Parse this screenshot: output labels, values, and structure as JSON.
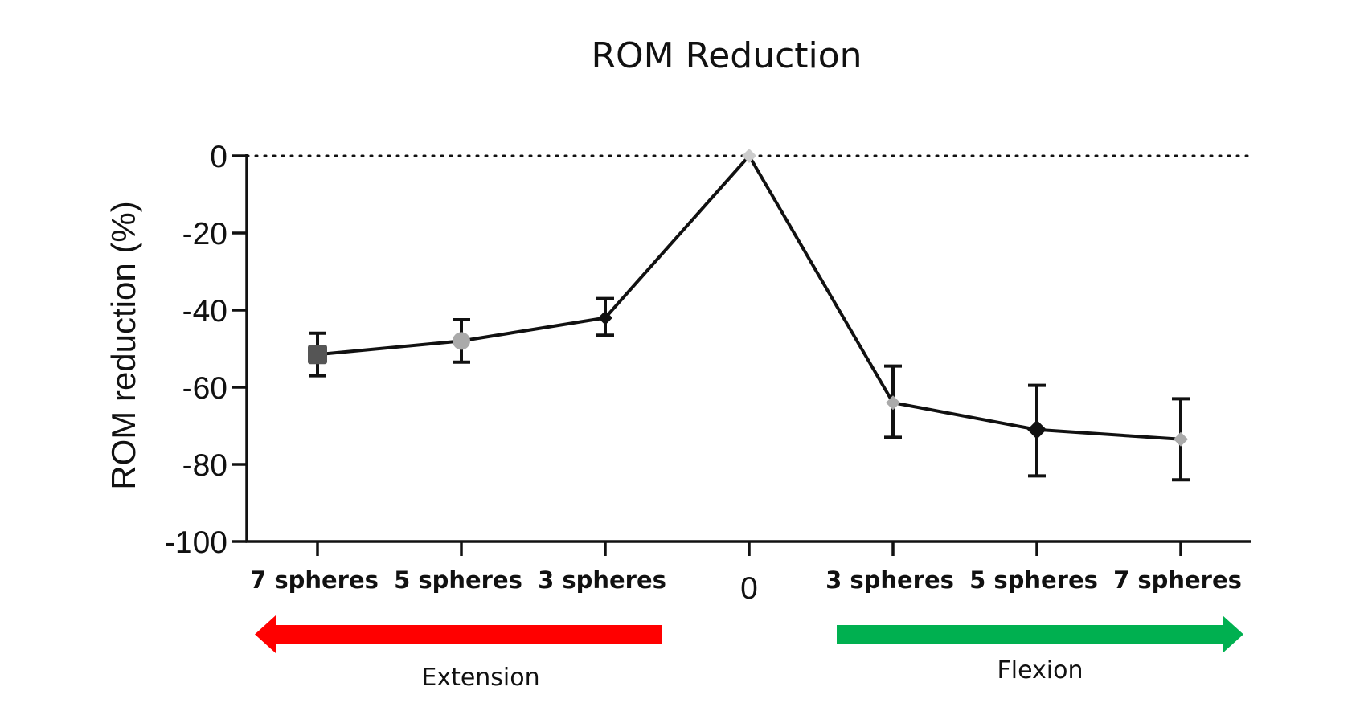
{
  "chart_data": {
    "type": "line",
    "title": "ROM Reduction",
    "ylabel": "ROM reduction (%)",
    "xlabel": "",
    "ylim": [
      -100,
      0
    ],
    "yticks": [
      0,
      -20,
      -40,
      -60,
      -80,
      -100
    ],
    "reference_line": {
      "y": 0,
      "style": "dotted"
    },
    "categories": [
      "7 spheres",
      "5 spheres",
      "3 spheres",
      "0",
      "3 spheres",
      "5 spheres",
      "7 spheres"
    ],
    "values": [
      -51.5,
      -48,
      -42,
      0,
      -64,
      -71,
      -73.5
    ],
    "error_bars": [
      [
        -57,
        -46
      ],
      [
        -53.5,
        -42.5
      ],
      [
        -46.5,
        -37
      ],
      null,
      [
        -73,
        -54.5
      ],
      [
        -83,
        -59.5
      ],
      [
        -84,
        -63
      ]
    ],
    "marker_colors": [
      "#555555",
      "#aaaaaa",
      "#111111",
      "#cccccc",
      "#aaaaaa",
      "#111111",
      "#aaaaaa"
    ],
    "directions": [
      {
        "label": "Extension",
        "color": "#ff0000",
        "pointing": "left",
        "categories": [
          0,
          1,
          2
        ]
      },
      {
        "label": "Flexion",
        "color": "#00b050",
        "pointing": "right",
        "categories": [
          4,
          5,
          6
        ]
      }
    ]
  }
}
